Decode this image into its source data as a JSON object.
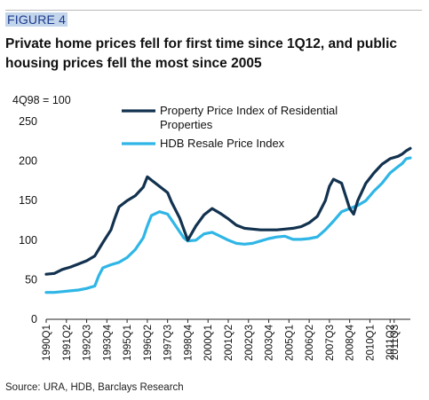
{
  "figure_label": "FIGURE 4",
  "title": "Private home prices fell for first time since 1Q12, and public housing prices fell the most since 2005",
  "source": "Source: URA, HDB, Barclays Research",
  "chart_data": {
    "type": "line",
    "title": "Private home prices fell for first time since 1Q12, and public housing prices fell the most since 2005",
    "ylabel": "4Q98 = 100",
    "xlabel": "",
    "ylim": [
      0,
      250
    ],
    "yticks": [
      0,
      50,
      100,
      150,
      200,
      250
    ],
    "xlim": [
      "1990Q1",
      "2012Q3"
    ],
    "xticks": [
      "1990Q1",
      "1991Q2",
      "1992Q3",
      "1993Q4",
      "1995Q1",
      "1996Q2",
      "1997Q3",
      "1998Q4",
      "2000Q1",
      "2001Q2",
      "2002Q3",
      "2003Q4",
      "2005Q1",
      "2006Q2",
      "2007Q3",
      "2008Q4",
      "2010Q1",
      "2011Q2",
      "2011Q3"
    ],
    "grid": false,
    "legend_position": "top",
    "series": [
      {
        "name": "Property Price Index of Residential Properties",
        "color": "#12324f",
        "points": [
          [
            "1990Q1",
            57
          ],
          [
            "1990Q3",
            58
          ],
          [
            "1991Q1",
            63
          ],
          [
            "1991Q3",
            66
          ],
          [
            "1992Q1",
            70
          ],
          [
            "1992Q3",
            74
          ],
          [
            "1993Q1",
            80
          ],
          [
            "1993Q3",
            97
          ],
          [
            "1994Q1",
            113
          ],
          [
            "1994Q2",
            128
          ],
          [
            "1994Q3",
            142
          ],
          [
            "1995Q1",
            150
          ],
          [
            "1995Q3",
            156
          ],
          [
            "1996Q1",
            167
          ],
          [
            "1996Q2",
            180
          ],
          [
            "1996Q3",
            176
          ],
          [
            "1997Q1",
            168
          ],
          [
            "1997Q3",
            160
          ],
          [
            "1997Q4",
            148
          ],
          [
            "1998Q2",
            128
          ],
          [
            "1998Q4",
            100
          ],
          [
            "1999Q2",
            118
          ],
          [
            "1999Q4",
            132
          ],
          [
            "2000Q2",
            140
          ],
          [
            "2000Q4",
            134
          ],
          [
            "2001Q2",
            127
          ],
          [
            "2001Q4",
            119
          ],
          [
            "2002Q2",
            115
          ],
          [
            "2002Q4",
            114
          ],
          [
            "2003Q2",
            113
          ],
          [
            "2003Q4",
            113
          ],
          [
            "2004Q2",
            113
          ],
          [
            "2004Q4",
            114
          ],
          [
            "2005Q2",
            115
          ],
          [
            "2005Q4",
            117
          ],
          [
            "2006Q2",
            122
          ],
          [
            "2006Q4",
            130
          ],
          [
            "2007Q2",
            150
          ],
          [
            "2007Q3",
            168
          ],
          [
            "2007Q4",
            177
          ],
          [
            "2008Q2",
            172
          ],
          [
            "2008Q4",
            140
          ],
          [
            "2009Q1",
            133
          ],
          [
            "2009Q2",
            150
          ],
          [
            "2009Q4",
            172
          ],
          [
            "2010Q2",
            185
          ],
          [
            "2010Q4",
            196
          ],
          [
            "2011Q2",
            203
          ],
          [
            "2011Q4",
            206
          ],
          [
            "2012Q1",
            209
          ],
          [
            "2012Q2",
            213
          ],
          [
            "2012Q3",
            216
          ]
        ]
      },
      {
        "name": "HDB Resale Price Index",
        "color": "#2fb6e6",
        "points": [
          [
            "1990Q1",
            34
          ],
          [
            "1990Q3",
            34
          ],
          [
            "1991Q1",
            35
          ],
          [
            "1991Q3",
            36
          ],
          [
            "1992Q1",
            37
          ],
          [
            "1992Q3",
            39
          ],
          [
            "1993Q1",
            42
          ],
          [
            "1993Q2",
            55
          ],
          [
            "1993Q3",
            65
          ],
          [
            "1994Q1",
            69
          ],
          [
            "1994Q3",
            72
          ],
          [
            "1995Q1",
            78
          ],
          [
            "1995Q3",
            88
          ],
          [
            "1996Q1",
            103
          ],
          [
            "1996Q2",
            118
          ],
          [
            "1996Q3",
            131
          ],
          [
            "1997Q1",
            136
          ],
          [
            "1997Q3",
            133
          ],
          [
            "1998Q1",
            118
          ],
          [
            "1998Q3",
            103
          ],
          [
            "1998Q4",
            99
          ],
          [
            "1999Q2",
            100
          ],
          [
            "1999Q4",
            108
          ],
          [
            "2000Q2",
            110
          ],
          [
            "2000Q4",
            105
          ],
          [
            "2001Q2",
            100
          ],
          [
            "2001Q4",
            96
          ],
          [
            "2002Q2",
            95
          ],
          [
            "2002Q4",
            96
          ],
          [
            "2003Q2",
            99
          ],
          [
            "2003Q4",
            102
          ],
          [
            "2004Q2",
            104
          ],
          [
            "2004Q4",
            105
          ],
          [
            "2005Q1",
            103
          ],
          [
            "2005Q2",
            101
          ],
          [
            "2005Q4",
            101
          ],
          [
            "2006Q2",
            102
          ],
          [
            "2006Q4",
            104
          ],
          [
            "2007Q2",
            113
          ],
          [
            "2007Q4",
            124
          ],
          [
            "2008Q2",
            136
          ],
          [
            "2008Q4",
            140
          ],
          [
            "2009Q2",
            144
          ],
          [
            "2009Q4",
            150
          ],
          [
            "2010Q2",
            162
          ],
          [
            "2010Q4",
            172
          ],
          [
            "2011Q2",
            185
          ],
          [
            "2011Q4",
            193
          ],
          [
            "2012Q1",
            197
          ],
          [
            "2012Q2",
            203
          ],
          [
            "2012Q3",
            204
          ]
        ]
      }
    ]
  }
}
